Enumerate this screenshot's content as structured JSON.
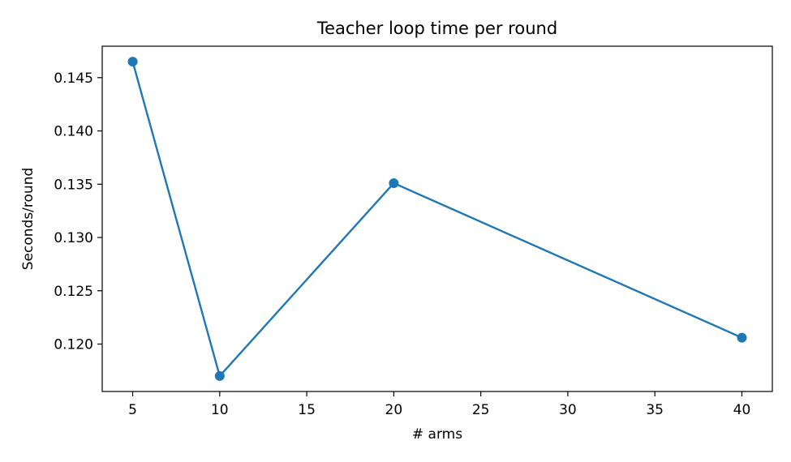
{
  "chart_data": {
    "type": "line",
    "title": "Teacher loop time per round",
    "xlabel": "# arms",
    "ylabel": "Seconds/round",
    "xlim": [
      3.25,
      41.75
    ],
    "ylim": [
      0.11555,
      0.14795
    ],
    "x_ticks": [
      "5",
      "10",
      "15",
      "20",
      "25",
      "30",
      "35",
      "40"
    ],
    "y_ticks": [
      "0.120",
      "0.125",
      "0.130",
      "0.135",
      "0.140",
      "0.145"
    ],
    "grid": false,
    "line_color": "#1f77b4",
    "series": [
      {
        "x": [
          5,
          10,
          20,
          40
        ],
        "values": [
          0.1465,
          0.117,
          0.1351,
          0.1206
        ]
      }
    ]
  }
}
